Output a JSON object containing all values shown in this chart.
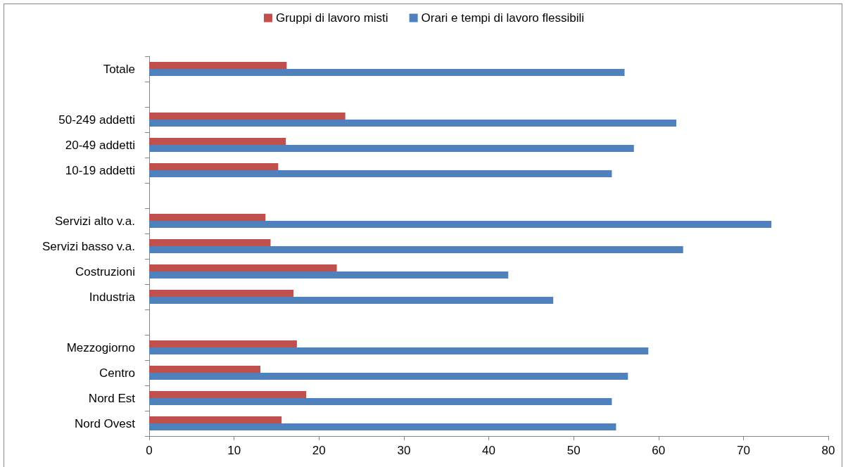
{
  "chart_data": {
    "type": "bar",
    "orientation": "horizontal",
    "categories": [
      "Totale",
      null,
      "50-249 addetti",
      "20-49 addetti",
      "10-19 addetti",
      null,
      "Servizi alto v.a.",
      "Servizi basso v.a.",
      "Costruzioni",
      "Industria",
      null,
      "Mezzogiorno",
      "Centro",
      "Nord Est",
      "Nord Ovest"
    ],
    "series": [
      {
        "name": "Gruppi di lavoro misti",
        "color": "#c0504d",
        "values": [
          16.2,
          null,
          23.1,
          16.1,
          15.2,
          null,
          13.7,
          14.3,
          22.1,
          17.0,
          null,
          17.4,
          13.1,
          18.5,
          15.6
        ]
      },
      {
        "name": "Orari e tempi di lavoro flessibili",
        "color": "#4f81bd",
        "values": [
          56.0,
          null,
          62.1,
          57.1,
          54.5,
          null,
          73.3,
          62.9,
          42.3,
          47.6,
          null,
          58.8,
          56.4,
          54.5,
          55.0
        ]
      }
    ],
    "xlim": [
      0,
      80
    ],
    "xticks": [
      0,
      10,
      20,
      30,
      40,
      50,
      60,
      70,
      80
    ],
    "grid": false,
    "legend": "top"
  }
}
